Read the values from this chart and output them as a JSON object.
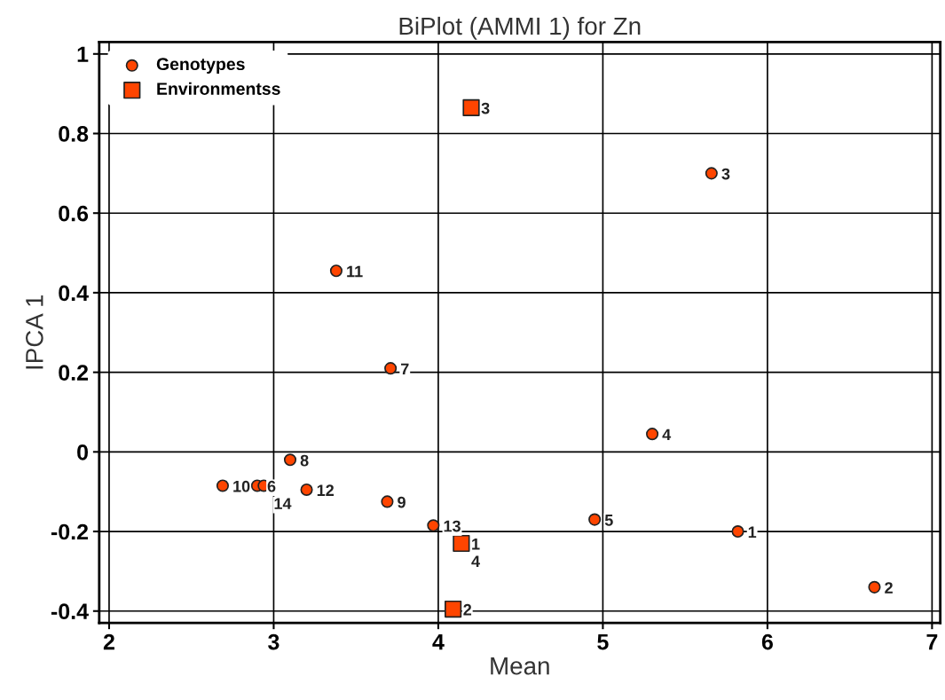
{
  "chart_data": {
    "type": "scatter",
    "title": "BiPlot (AMMI 1) for Zn",
    "xlabel": "Mean",
    "ylabel": "IPCA 1",
    "xlim": [
      1.94,
      7.05
    ],
    "ylim": [
      -0.43,
      1.03
    ],
    "xticks": [
      2,
      3,
      4,
      5,
      6,
      7
    ],
    "yticks": [
      -0.4,
      -0.2,
      0,
      0.2,
      0.4,
      0.6,
      0.8,
      1
    ],
    "grid": true,
    "legend": "top left",
    "series": [
      {
        "name": "Genotypes",
        "color": "#ff4500",
        "marker": "circle",
        "x": [
          5.82,
          6.65,
          5.66,
          5.3,
          4.95,
          2.9,
          3.71,
          3.1,
          3.69,
          2.69,
          3.38,
          3.2,
          3.97,
          2.94
        ],
        "values": [
          -0.2,
          -0.34,
          0.7,
          0.045,
          -0.17,
          -0.085,
          0.21,
          -0.02,
          -0.125,
          -0.085,
          0.455,
          -0.095,
          -0.185,
          -0.085
        ]
      },
      {
        "name": "Environmentss",
        "color": "#ff4500",
        "marker": "square",
        "x": [
          null,
          4.09,
          4.2,
          4.14
        ],
        "values": [
          null,
          -0.395,
          0.865,
          -0.23
        ]
      }
    ],
    "annotations": [
      {
        "text": "1",
        "x": 5.82,
        "y": -0.2
      },
      {
        "text": "2",
        "x": 6.65,
        "y": -0.34
      },
      {
        "text": "3",
        "x": 5.66,
        "y": 0.7
      },
      {
        "text": "4",
        "x": 5.3,
        "y": 0.045
      },
      {
        "text": "5",
        "x": 4.95,
        "y": -0.17
      },
      {
        "text": "6",
        "x": 2.9,
        "y": -0.085
      },
      {
        "text": "7",
        "x": 3.71,
        "y": 0.21
      },
      {
        "text": "8",
        "x": 3.1,
        "y": -0.02
      },
      {
        "text": "9",
        "x": 3.69,
        "y": -0.125
      },
      {
        "text": "10",
        "x": 2.69,
        "y": -0.085
      },
      {
        "text": "11",
        "x": 3.38,
        "y": 0.455
      },
      {
        "text": "12",
        "x": 3.2,
        "y": -0.095
      },
      {
        "text": "13",
        "x": 3.97,
        "y": -0.185
      },
      {
        "text": "14",
        "x": 2.94,
        "y": -0.085
      },
      {
        "text": "1",
        "x": 4.14,
        "y": -0.23
      },
      {
        "text": "2",
        "x": 4.09,
        "y": -0.395
      },
      {
        "text": "3",
        "x": 4.2,
        "y": 0.865
      },
      {
        "text": "4",
        "x": 4.14,
        "y": -0.23
      }
    ]
  }
}
